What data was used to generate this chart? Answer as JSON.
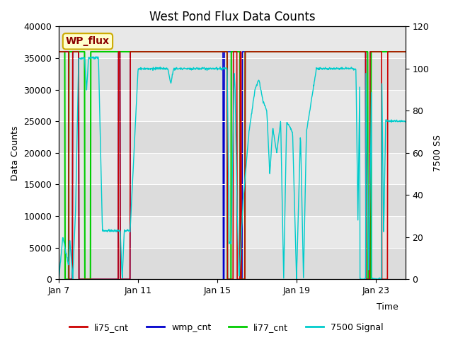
{
  "title": "West Pond Flux Data Counts",
  "xlabel": "Time",
  "ylabel_left": "Data Counts",
  "ylabel_right": "7500 SS",
  "annotation_text": "WP_flux",
  "ylim_left": [
    0,
    40000
  ],
  "ylim_right": [
    0,
    120
  ],
  "yticks_left": [
    0,
    5000,
    10000,
    15000,
    20000,
    25000,
    30000,
    35000,
    40000
  ],
  "yticks_right": [
    0,
    20,
    40,
    60,
    80,
    100,
    120
  ],
  "xtick_positions": [
    0,
    4,
    8,
    12,
    16
  ],
  "xtick_labels": [
    "Jan 7",
    "Jan 11",
    "Jan 15",
    "Jan 19",
    "Jan 23"
  ],
  "xlim": [
    0,
    17.5
  ],
  "colors": {
    "li75_cnt": "#cc0000",
    "wmp_cnt": "#0000cc",
    "li77_cnt": "#00cc00",
    "signal7500": "#00cccc"
  },
  "bg_color": "#e8e8e8",
  "strip_colors": [
    "#e8e8e8",
    "#d8d8d8"
  ],
  "legend_labels": [
    "li75_cnt",
    "wmp_cnt",
    "li77_cnt",
    "7500 Signal"
  ],
  "title_fontsize": 12,
  "label_fontsize": 9,
  "tick_fontsize": 9,
  "base_val": 36000,
  "n_points": 1000
}
